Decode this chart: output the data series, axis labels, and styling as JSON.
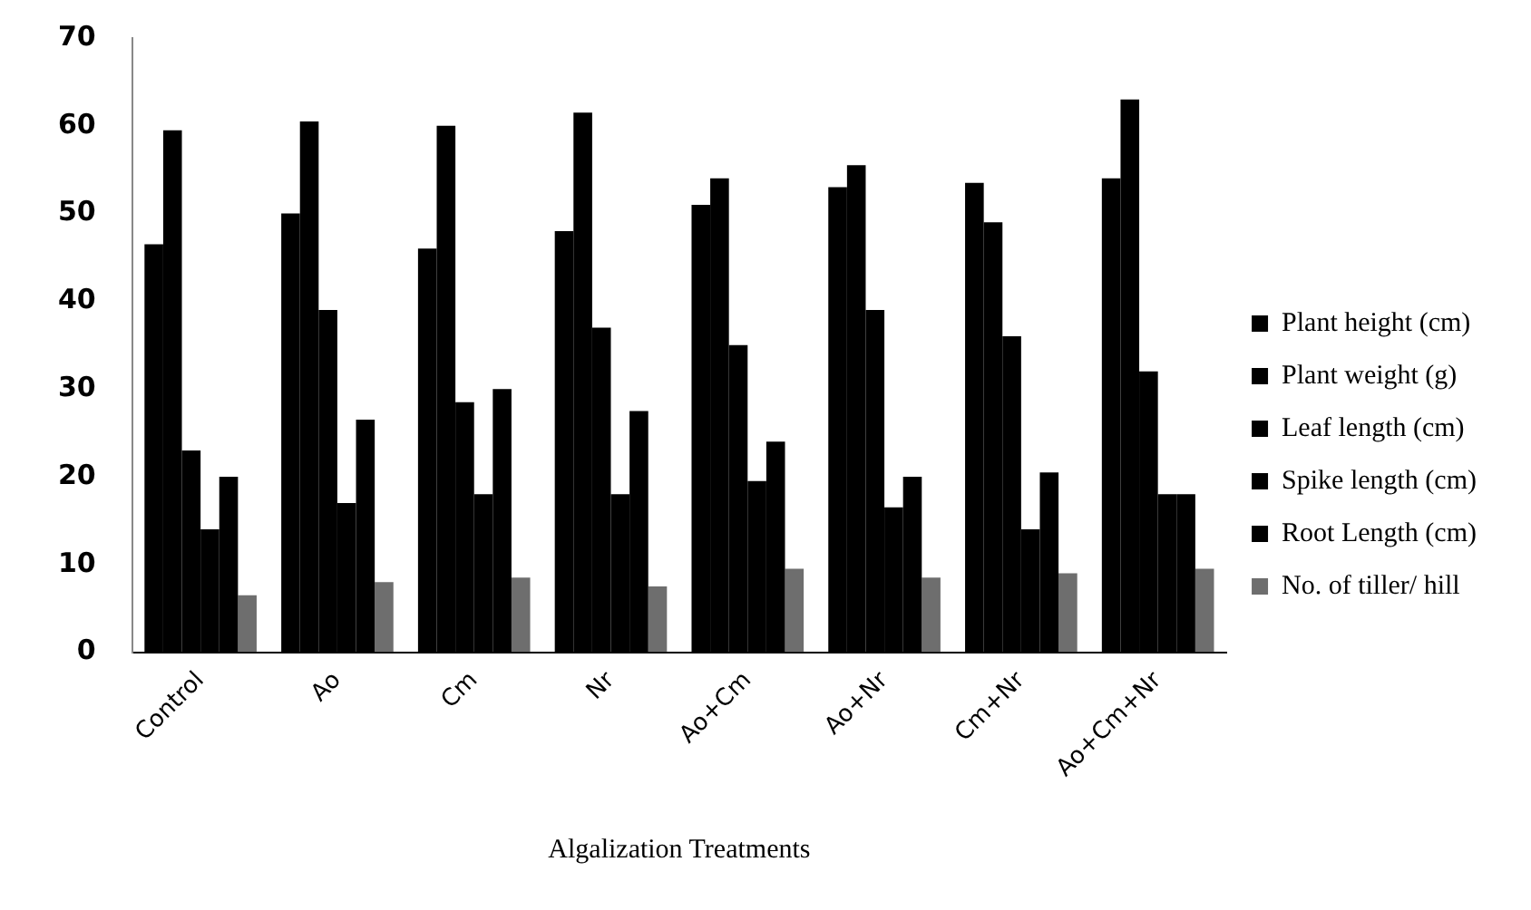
{
  "chart_data": {
    "type": "bar",
    "xlabel": "Algalization Treatments",
    "categories": [
      "Control",
      "Ao",
      "Cm",
      "Nr",
      "Ao+Cm",
      "Ao+Nr",
      "Cm+Nr",
      "Ao+Cm+Nr"
    ],
    "series": [
      {
        "name": "Plant height (cm)",
        "color": "#000000",
        "values": [
          46.5,
          50,
          46,
          48,
          51,
          53,
          53.5,
          54
        ]
      },
      {
        "name": "Plant weight (g)",
        "color": "#000000",
        "values": [
          59.5,
          60.5,
          60,
          61.5,
          54,
          55.5,
          49,
          63
        ]
      },
      {
        "name": "Leaf length (cm)",
        "color": "#000000",
        "values": [
          23,
          39,
          28.5,
          37,
          35,
          39,
          36,
          32
        ]
      },
      {
        "name": "Spike length (cm)",
        "color": "#000000",
        "values": [
          14,
          17,
          18,
          18,
          19.5,
          16.5,
          14,
          18
        ]
      },
      {
        "name": "Root Length (cm)",
        "color": "#000000",
        "values": [
          20,
          26.5,
          30,
          27.5,
          24,
          20,
          20.5,
          18
        ]
      },
      {
        "name": "No. of tiller/ hill",
        "color": "#6e6e6e",
        "values": [
          6.5,
          8,
          8.5,
          7.5,
          9.5,
          8.5,
          9,
          9.5
        ]
      }
    ],
    "ylim": [
      0,
      70
    ],
    "yticks": [
      0,
      10,
      20,
      30,
      40,
      50,
      60,
      70
    ],
    "grid": false,
    "legend": "right"
  }
}
